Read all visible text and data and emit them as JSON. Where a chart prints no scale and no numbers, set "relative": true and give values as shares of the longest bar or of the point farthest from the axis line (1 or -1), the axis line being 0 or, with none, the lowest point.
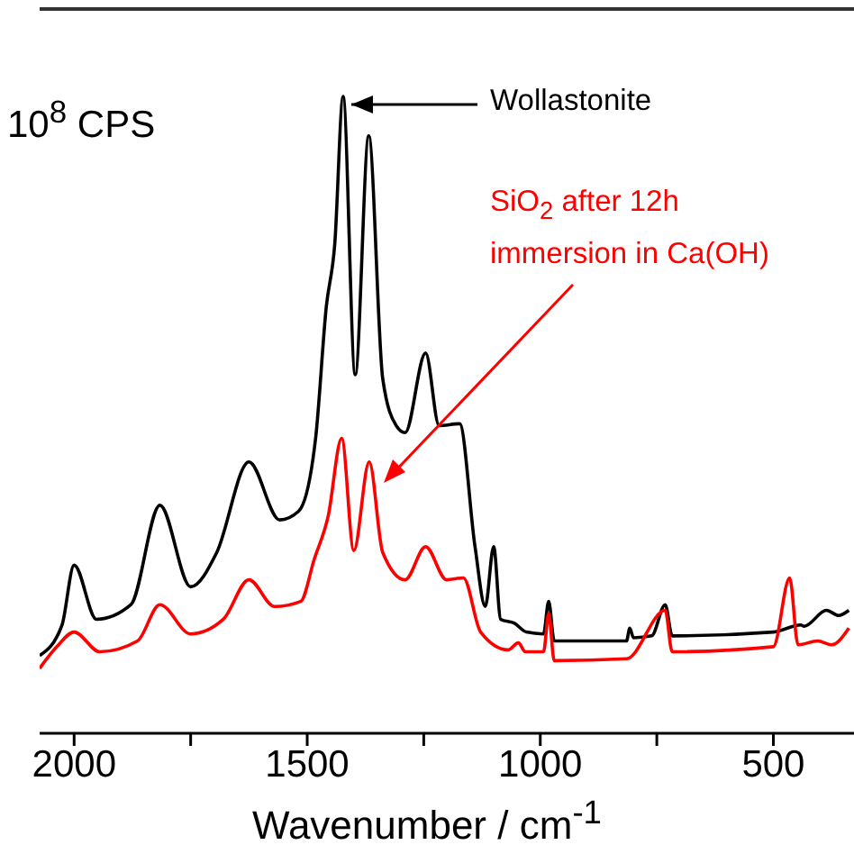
{
  "chart_data": {
    "type": "line",
    "relative": true,
    "xlabel": "Wavenumber / cm$^{-1}$",
    "xlim": [
      2074,
      327
    ],
    "xticks": [
      2000,
      {
        "value": 1750,
        "label": null
      },
      1500,
      {
        "value": 1250,
        "label": null
      },
      1000,
      {
        "value": 750,
        "label": null
      },
      500
    ],
    "annotations": [
      "10$^{8}$ CPS"
    ],
    "legend": "top right",
    "marker": "none",
    "line_style": "solid",
    "series": [
      {
        "name": "Wollastonite",
        "color": "#000000",
        "x": [
          2074,
          2026,
          2000,
          1952,
          1878,
          1816,
          1750,
          1694,
          1625,
          1559,
          1518,
          1482,
          1459,
          1441,
          1423,
          1397,
          1368,
          1338,
          1309,
          1290,
          1246,
          1217,
          1173,
          1140,
          1118,
          1100,
          1085,
          1056,
          1030,
          993,
          982,
          970,
          937,
          815,
          808,
          800,
          761,
          732,
          717,
          500,
          441,
          434,
          386,
          360,
          338
        ],
        "values": [
          0.122,
          0.17,
          0.264,
          0.179,
          0.202,
          0.358,
          0.23,
          0.284,
          0.426,
          0.335,
          0.349,
          0.463,
          0.67,
          0.767,
          1.0,
          0.563,
          0.938,
          0.557,
          0.483,
          0.472,
          0.597,
          0.483,
          0.486,
          0.293,
          0.199,
          0.293,
          0.179,
          0.173,
          0.159,
          0.156,
          0.207,
          0.145,
          0.145,
          0.145,
          0.165,
          0.15,
          0.153,
          0.202,
          0.153,
          0.159,
          0.17,
          0.168,
          0.193,
          0.185,
          0.193
        ]
      },
      {
        "name": "SiO$_{2}$ after 12h immersion in Ca(OH)",
        "color": "#ff0000",
        "x": [
          2074,
          2037,
          2000,
          1945,
          1864,
          1816,
          1750,
          1680,
          1625,
          1570,
          1514,
          1485,
          1455,
          1426,
          1400,
          1367,
          1338,
          1290,
          1246,
          1201,
          1165,
          1128,
          1069,
          1047,
          1032,
          993,
          982,
          970,
          815,
          732,
          717,
          500,
          465,
          447,
          405,
          375,
          338
        ],
        "values": [
          0.102,
          0.136,
          0.159,
          0.128,
          0.145,
          0.202,
          0.156,
          0.179,
          0.241,
          0.199,
          0.207,
          0.273,
          0.341,
          0.463,
          0.287,
          0.426,
          0.284,
          0.241,
          0.293,
          0.241,
          0.244,
          0.159,
          0.131,
          0.142,
          0.128,
          0.128,
          0.188,
          0.114,
          0.117,
          0.193,
          0.128,
          0.136,
          0.244,
          0.139,
          0.145,
          0.139,
          0.165
        ]
      }
    ]
  }
}
